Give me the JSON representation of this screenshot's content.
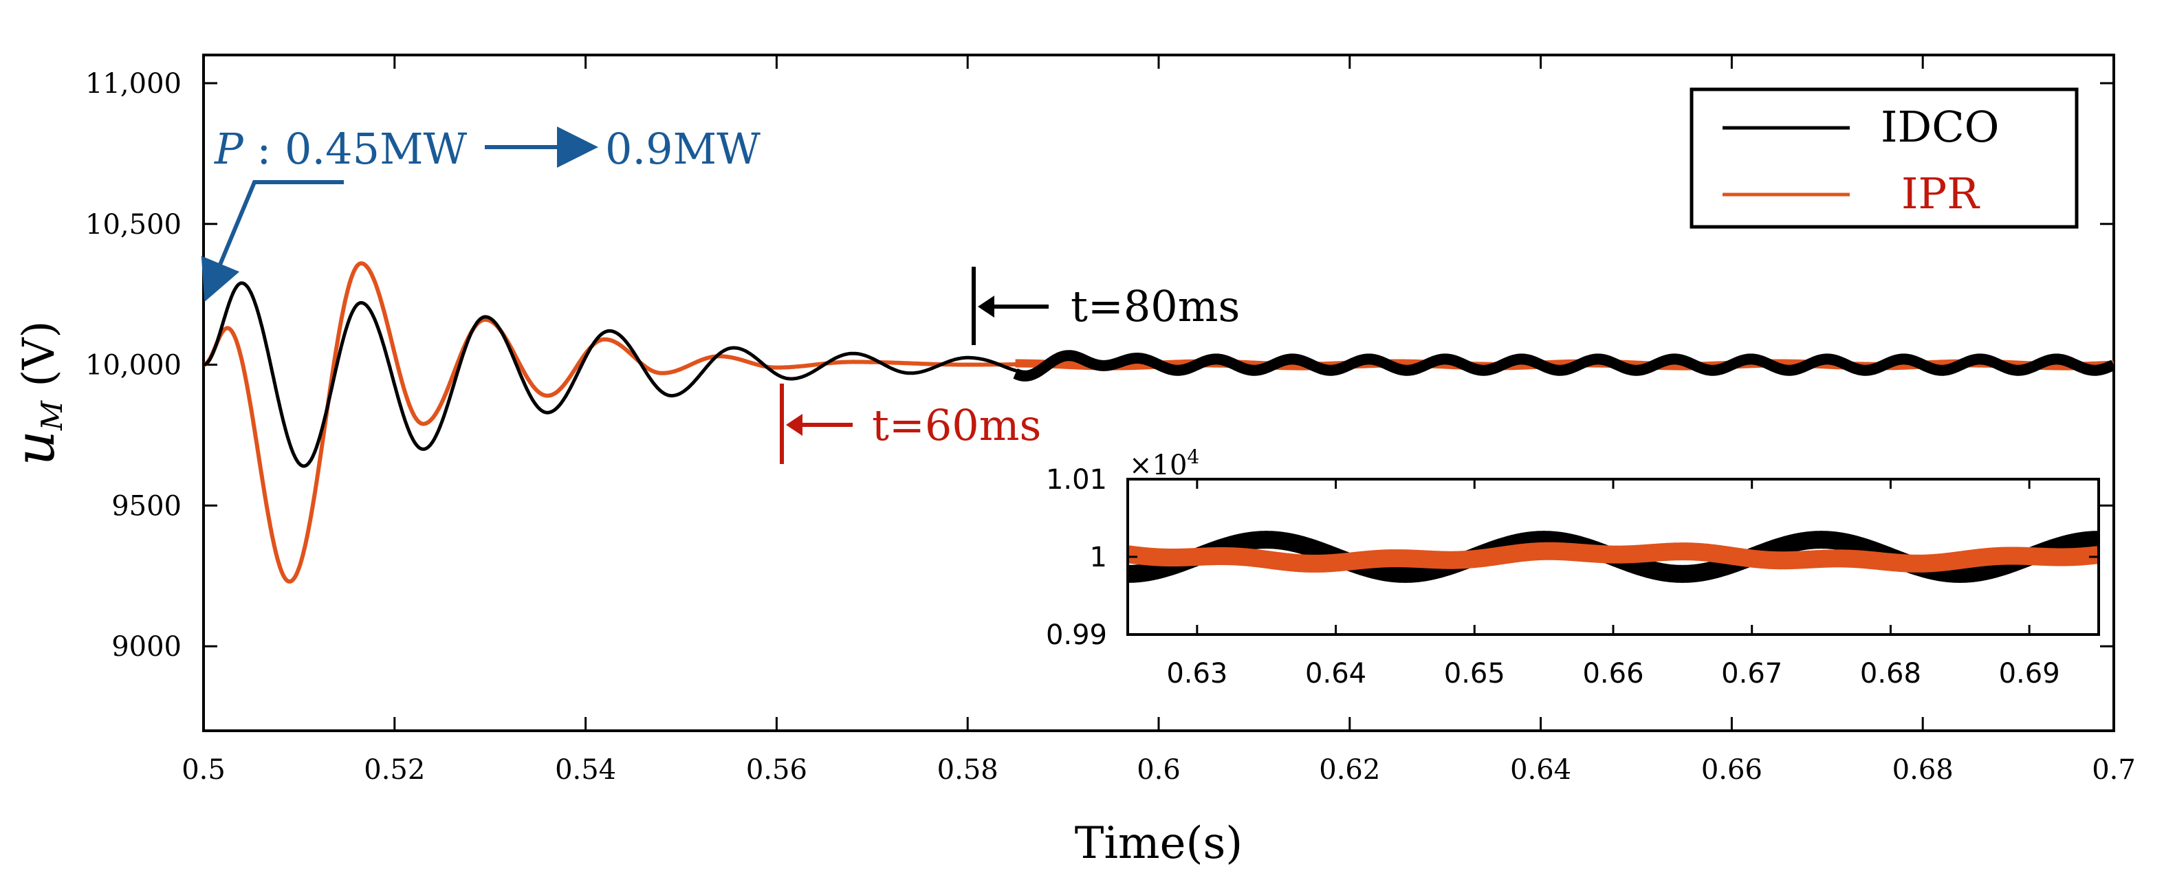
{
  "chart_data": [
    {
      "type": "line",
      "title": "",
      "xlabel": "Time(s)",
      "ylabel": "u",
      "ylabel_subscript": "M",
      "ylabel_unit": " (V)",
      "xlim": [
        0.5,
        0.7
      ],
      "ylim": [
        8700,
        11100
      ],
      "x_ticks": [
        0.5,
        0.52,
        0.54,
        0.56,
        0.58,
        0.6,
        0.62,
        0.64,
        0.66,
        0.68,
        0.7
      ],
      "x_tick_labels": [
        "0.5",
        "0.52",
        "0.54",
        "0.56",
        "0.58",
        "0.6",
        "0.62",
        "0.64",
        "0.66",
        "0.68",
        "0.7"
      ],
      "y_ticks": [
        9000,
        9500,
        10000,
        10500,
        11000
      ],
      "y_tick_labels": [
        "9000",
        "9500",
        "10,000",
        "10,500",
        "11,000"
      ],
      "grid": false,
      "legend_position": "top-right",
      "series": [
        {
          "name": "IDCO",
          "color": "#000000",
          "x": [
            0.5,
            0.504,
            0.5105,
            0.5165,
            0.523,
            0.5295,
            0.536,
            0.5425,
            0.549,
            0.5555,
            0.5615,
            0.568,
            0.574,
            0.58,
            0.586,
            0.592,
            0.6,
            0.61,
            0.62,
            0.63,
            0.64,
            0.65,
            0.66,
            0.67,
            0.68,
            0.69,
            0.7
          ],
          "y": [
            10000,
            10290,
            9640,
            10220,
            9700,
            10170,
            9830,
            10120,
            9890,
            10060,
            9950,
            10040,
            9970,
            10025,
            9980,
            10020,
            10000,
            10000,
            10000,
            10000,
            10000,
            10000,
            10000,
            10000,
            10000,
            10000,
            10000
          ],
          "oscillation_amplitude": 20,
          "oscillation_period": 0.008
        },
        {
          "name": "IPR",
          "color": "#e0531c",
          "x": [
            0.5,
            0.5025,
            0.509,
            0.5165,
            0.523,
            0.5295,
            0.536,
            0.542,
            0.548,
            0.554,
            0.56,
            0.568,
            0.58,
            0.6,
            0.7
          ],
          "y": [
            10000,
            10130,
            9230,
            10360,
            9790,
            10160,
            9890,
            10090,
            9970,
            10030,
            9990,
            10010,
            10000,
            10000,
            10000
          ],
          "oscillation_amplitude": 5,
          "oscillation_period": 0.02
        }
      ],
      "legend": [
        "IDCO",
        "IPR"
      ],
      "legend_text_colors": [
        "#000000",
        "#c0180c"
      ],
      "annotations": [
        {
          "text_italic": "P",
          "text": " : 0.45MW",
          "text2": "0.9MW",
          "color": "#1a5a96"
        },
        {
          "text": "t=80ms",
          "color": "#000000",
          "x": 0.58
        },
        {
          "text": "t=60ms",
          "color": "#c0180c",
          "x": 0.56
        }
      ]
    },
    {
      "type": "line",
      "title": "",
      "inset": true,
      "exponent_label": "×10",
      "exponent_power": "4",
      "xlim": [
        0.625,
        0.695
      ],
      "ylim": [
        0.99,
        1.01
      ],
      "x_ticks": [
        0.63,
        0.64,
        0.65,
        0.66,
        0.67,
        0.68,
        0.69
      ],
      "x_tick_labels": [
        "0.63",
        "0.64",
        "0.65",
        "0.66",
        "0.67",
        "0.68",
        "0.69"
      ],
      "y_ticks": [
        0.99,
        1.0,
        1.01
      ],
      "y_tick_labels": [
        "0.99",
        "1",
        "1.01"
      ],
      "series": [
        {
          "name": "IDCO",
          "color": "#000000",
          "center": 1.0,
          "amplitude": 0.0022,
          "period": 0.02,
          "phase_x": 0.63
        },
        {
          "name": "IPR",
          "color": "#e0531c",
          "center": 1.0,
          "amplitude": 0.0006,
          "period": 0.04,
          "phase_x": 0.65
        }
      ]
    }
  ]
}
